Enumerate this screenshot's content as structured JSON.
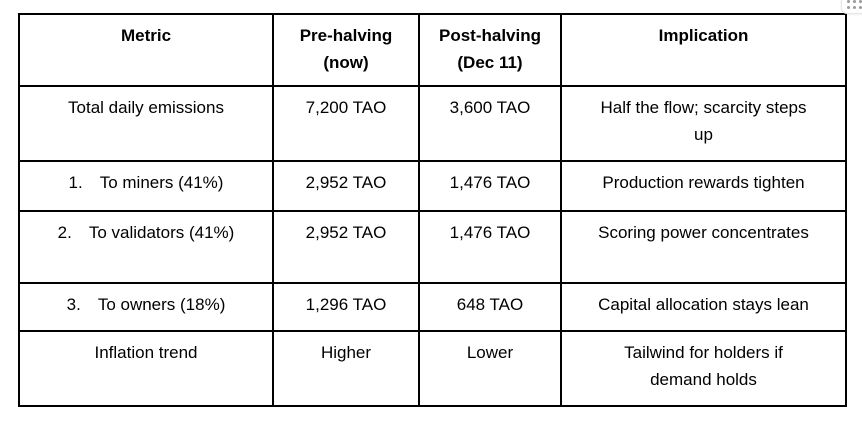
{
  "table": {
    "headers": [
      "Metric",
      "Pre-halving\n(now)",
      "Post-halving\n(Dec 11)",
      "Implication"
    ],
    "rows": [
      {
        "metric": "Total daily emissions",
        "pre": "7,200 TAO",
        "post": "3,600 TAO",
        "implication": "Half the flow; scarcity steps\nup"
      },
      {
        "num": "1.",
        "metric": "To miners (41%)",
        "pre": "2,952 TAO",
        "post": "1,476 TAO",
        "implication": "Production rewards tighten"
      },
      {
        "num": "2.",
        "metric": "To validators (41%)",
        "pre": "2,952 TAO",
        "post": "1,476 TAO",
        "implication": "Scoring power concentrates"
      },
      {
        "num": "3.",
        "metric": "To owners (18%)",
        "pre": "1,296 TAO",
        "post": "648 TAO",
        "implication": "Capital allocation stays lean"
      },
      {
        "metric": "Inflation trend",
        "pre": "Higher",
        "post": "Lower",
        "implication": "Tailwind for holders if\ndemand holds"
      }
    ]
  },
  "colors": {
    "table_border": "#000000",
    "text": "#000000",
    "grip_dots": "#9a9a9a",
    "corner_button_border": "#e4e4e4"
  },
  "corner_widget": {
    "icon": "grip-dots-icon"
  }
}
